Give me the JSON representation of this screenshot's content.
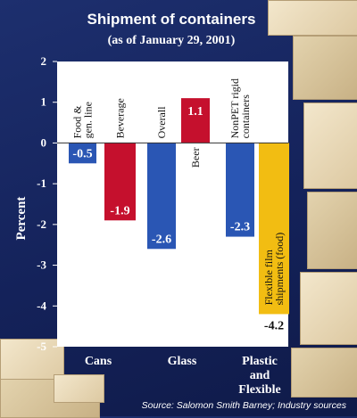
{
  "chart_data": {
    "type": "bar",
    "title": "Shipment of containers",
    "subtitle": "(as of January 29, 2001)",
    "ylabel": "Percent",
    "ylim": [
      -5,
      2
    ],
    "yticks": [
      2,
      1,
      0,
      -1,
      -2,
      -3,
      -4,
      -5
    ],
    "grid": false,
    "groups": [
      "Cans",
      "Glass",
      "Plastic\nand\nFlexible"
    ],
    "bars": [
      {
        "name": "Food &\ngen. line",
        "group": "Cans",
        "value": -0.5,
        "label": "-0.5",
        "color": "#2a56b4"
      },
      {
        "name": "Beverage",
        "group": "Cans",
        "value": -1.9,
        "label": "-1.9",
        "color": "#c5102d"
      },
      {
        "name": "Overall",
        "group": "Glass",
        "value": -2.6,
        "label": "-2.6",
        "color": "#2a56b4"
      },
      {
        "name": "Beer",
        "group": "Glass",
        "value": 1.1,
        "label": "1.1",
        "color": "#c5102d"
      },
      {
        "name": "NonPET rigid\ncontainers",
        "group": "Plastic\nand\nFlexible",
        "value": -2.3,
        "label": "-2.3",
        "color": "#2a56b4"
      },
      {
        "name": "Flexible film\nshipments (food)",
        "group": "Plastic\nand\nFlexible",
        "value": -4.2,
        "label": "-4.2",
        "color": "#f2bd12"
      }
    ]
  },
  "source": "Source: Salomon Smith Barney; Industry sources"
}
